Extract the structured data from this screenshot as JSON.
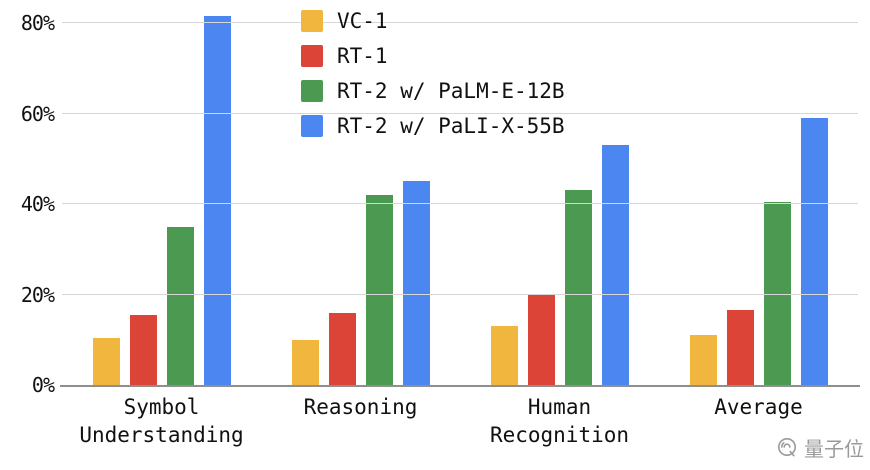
{
  "chart_data": {
    "type": "bar",
    "categories": [
      "Symbol\nUnderstanding",
      "Reasoning",
      "Human\nRecognition",
      "Average"
    ],
    "series": [
      {
        "name": "VC-1",
        "color": "#F0B63E",
        "values": [
          10.5,
          10,
          13,
          11
        ]
      },
      {
        "name": "RT-1",
        "color": "#DB4437",
        "values": [
          15.5,
          16,
          20,
          16.5
        ]
      },
      {
        "name": "RT-2 w/ PaLM-E-12B",
        "color": "#4C9A52",
        "values": [
          35,
          42,
          43,
          40.5
        ]
      },
      {
        "name": "RT-2 w/ PaLI-X-55B",
        "color": "#4C86F0",
        "values": [
          81.5,
          45,
          53,
          59
        ]
      }
    ],
    "title": "",
    "xlabel": "",
    "ylabel": "",
    "ylim": [
      0,
      82
    ],
    "yticks": [
      0,
      20,
      40,
      60,
      80
    ],
    "ytick_labels": [
      "0%",
      "20%",
      "40%",
      "60%",
      "80%"
    ],
    "grid": true,
    "legend_position": "top-center"
  },
  "watermark": {
    "text": "量子位"
  },
  "colors": {
    "gridline": "#d6d6d6",
    "axis": "#8f8f8f",
    "text": "#111111",
    "watermark": "#9a9a9a"
  }
}
